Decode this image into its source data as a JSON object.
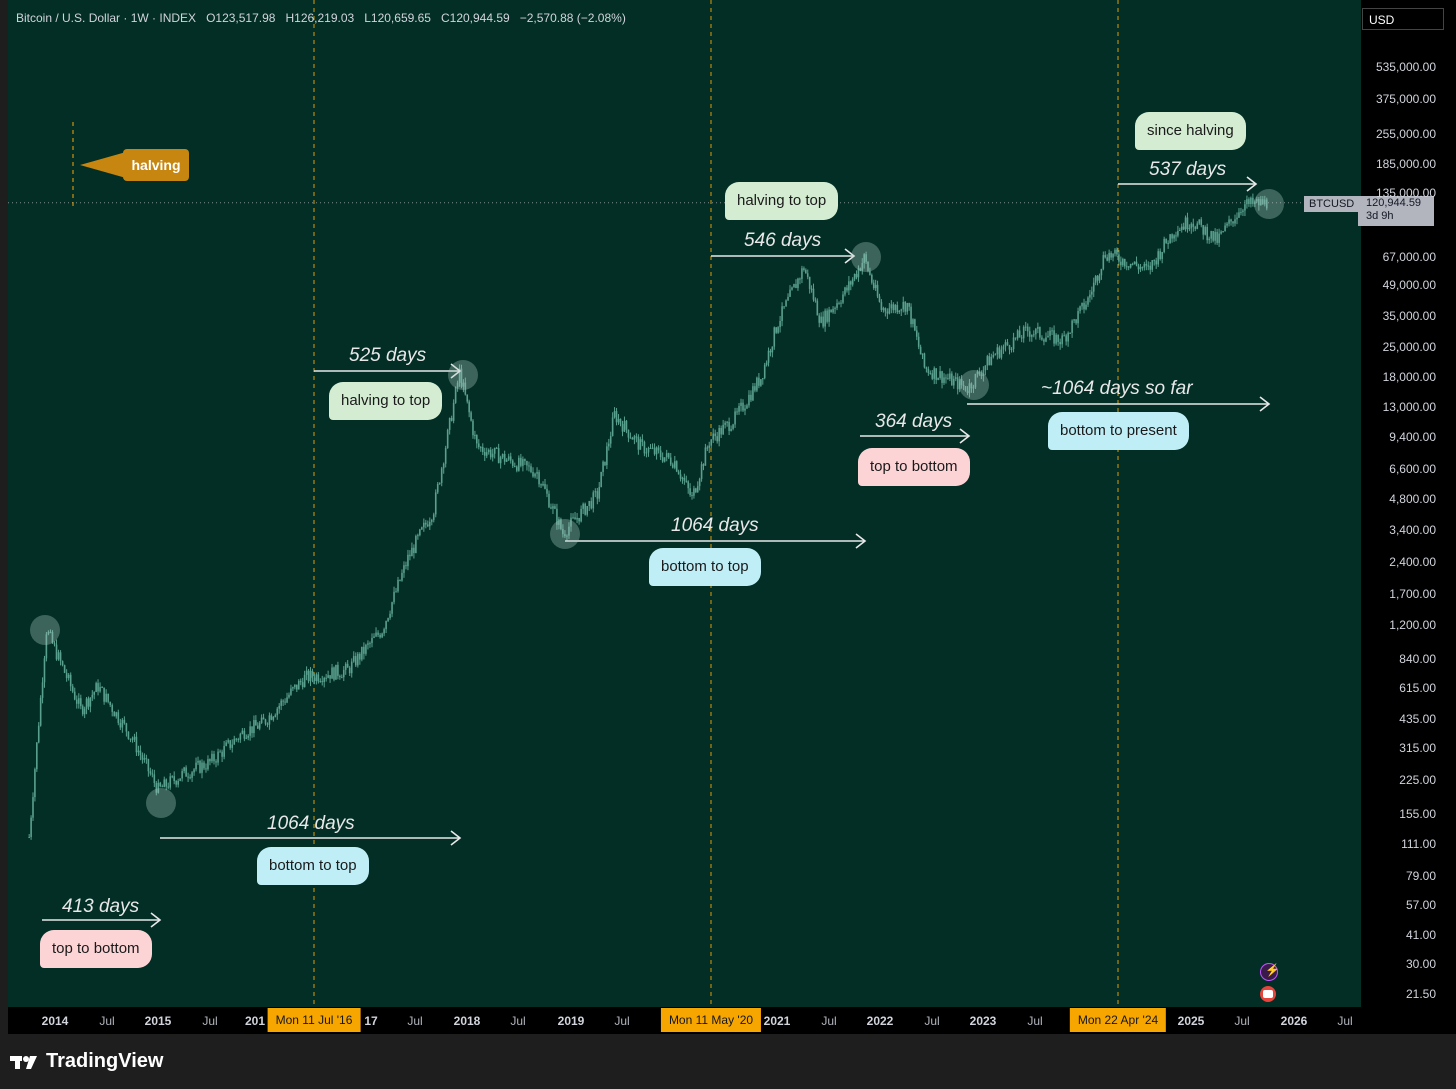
{
  "header": {
    "title": "Bitcoin / U.S. Dollar · 1W · INDEX",
    "open": "O123,517.98",
    "high": "H126,219.03",
    "low": "L120,659.65",
    "close": "C120,944.59",
    "change": "−2,570.88 (−2.08%)"
  },
  "currency_button": "USD",
  "price_tag": {
    "symbol": "BTCUSD",
    "price": "120,944.59",
    "countdown": "3d 9h"
  },
  "y_axis_labels": [
    "535,000.00",
    "375,000.00",
    "255,000.00",
    "185,000.00",
    "135,000.00",
    "67,000.00",
    "49,000.00",
    "35,000.00",
    "25,000.00",
    "18,000.00",
    "13,000.00",
    "9,400.00",
    "6,600.00",
    "4,800.00",
    "3,400.00",
    "2,400.00",
    "1,700.00",
    "1,200.00",
    "840.00",
    "615.00",
    "435.00",
    "315.00",
    "225.00",
    "155.00",
    "111.00",
    "79.00",
    "57.00",
    "41.00",
    "30.00",
    "21.50"
  ],
  "x_axis_labels": [
    {
      "text": "2014",
      "year": true
    },
    {
      "text": "Jul",
      "year": false
    },
    {
      "text": "2015",
      "year": true
    },
    {
      "text": "Jul",
      "year": false
    },
    {
      "text": "201",
      "year": true
    },
    {
      "text": "17",
      "year": true
    },
    {
      "text": "Jul",
      "year": false
    },
    {
      "text": "2018",
      "year": true
    },
    {
      "text": "Jul",
      "year": false
    },
    {
      "text": "2019",
      "year": true
    },
    {
      "text": "Jul",
      "year": false
    },
    {
      "text": "2021",
      "year": true
    },
    {
      "text": "Jul",
      "year": false
    },
    {
      "text": "2022",
      "year": true
    },
    {
      "text": "Jul",
      "year": false
    },
    {
      "text": "2023",
      "year": true
    },
    {
      "text": "Jul",
      "year": false
    },
    {
      "text": "2025",
      "year": true
    },
    {
      "text": "Jul",
      "year": false
    },
    {
      "text": "2026",
      "year": true
    },
    {
      "text": "Jul",
      "year": false
    }
  ],
  "halving_markers": [
    "Mon 11 Jul '16",
    "Mon 11 May '20",
    "Mon 22 Apr '24"
  ],
  "legend_tag": "halving",
  "annotations": {
    "since_halving": {
      "label": "since halving",
      "days": "537 days"
    },
    "halving_to_top_2020": {
      "label": "halving to top",
      "days": "546 days"
    },
    "halving_to_top_2016": {
      "label": "halving to top",
      "days": "525 days"
    },
    "bottom_to_present": {
      "label": "bottom to present",
      "days": "~1064 days so far"
    },
    "top_to_bottom_2021": {
      "label": "top to bottom",
      "days": "364 days"
    },
    "bottom_to_top_2018": {
      "label": "bottom to top",
      "days": "1064 days"
    },
    "bottom_to_top_2015": {
      "label": "bottom to top",
      "days": "1064 days"
    },
    "top_to_bottom_2013": {
      "label": "top to bottom",
      "days": "413 days"
    }
  },
  "brand": "TradingView",
  "colors": {
    "background": "#032e25",
    "candles": "#5aa08f",
    "halving_line": "#f7a600",
    "marker": "#f7a600",
    "price_line": "#b2b5be"
  },
  "chart_data": {
    "type": "candlestick",
    "symbol": "BTCUSD",
    "interval": "1W",
    "scale": "log",
    "ylim": [
      21.5,
      700000
    ],
    "x": [
      "2013-10",
      "2013-12",
      "2014-04",
      "2014-06",
      "2014-10",
      "2015-01",
      "2015-04",
      "2015-07",
      "2015-11",
      "2016-01",
      "2016-06",
      "2016-11",
      "2017-03",
      "2017-06",
      "2017-09",
      "2017-12",
      "2018-02",
      "2018-05",
      "2018-09",
      "2018-12",
      "2019-04",
      "2019-06",
      "2019-09",
      "2020-01",
      "2020-03",
      "2020-05",
      "2020-08",
      "2020-11",
      "2021-01",
      "2021-04",
      "2021-06",
      "2021-09",
      "2021-11",
      "2022-01",
      "2022-04",
      "2022-06",
      "2022-11",
      "2023-02",
      "2023-06",
      "2023-10",
      "2024-01",
      "2024-03",
      "2024-08",
      "2024-11",
      "2025-01",
      "2025-04",
      "2025-07",
      "2025-10"
    ],
    "y": [
      120,
      1150,
      480,
      620,
      350,
      200,
      240,
      270,
      380,
      410,
      680,
      740,
      1150,
      2500,
      4300,
      19000,
      8500,
      7500,
      6400,
      3300,
      5000,
      12000,
      8500,
      7200,
      4800,
      9000,
      11500,
      18000,
      33000,
      60000,
      33000,
      47000,
      66000,
      38000,
      40000,
      20000,
      16000,
      23000,
      30000,
      27000,
      42000,
      70000,
      58000,
      90000,
      100000,
      80000,
      118000,
      121000
    ]
  }
}
